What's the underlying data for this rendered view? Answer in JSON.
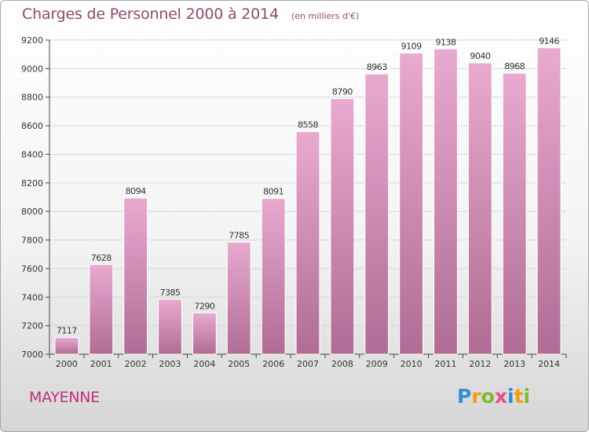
{
  "header": {
    "title": "Charges de Personnel 2000 à 2014",
    "subtitle": "(en milliers d'€)"
  },
  "footer": {
    "location": "MAYENNE",
    "logo_letters": [
      "P",
      "r",
      "o",
      "x",
      "i",
      "t",
      "i"
    ]
  },
  "colors": {
    "title": "#8c4a70",
    "location": "#c0307a",
    "bar_top": "#e9aad0",
    "bar_bottom": "#b06c94",
    "grid": "#d8d8d8"
  },
  "chart_data": {
    "type": "bar",
    "title": "Charges de Personnel 2000 à 2014",
    "subtitle": "(en milliers d'€)",
    "xlabel": "",
    "ylabel": "",
    "categories": [
      "2000",
      "2001",
      "2002",
      "2003",
      "2004",
      "2005",
      "2006",
      "2007",
      "2008",
      "2009",
      "2010",
      "2011",
      "2012",
      "2013",
      "2014"
    ],
    "values": [
      7117,
      7628,
      8094,
      7385,
      7290,
      7785,
      8091,
      8558,
      8790,
      8963,
      9109,
      9138,
      9040,
      8968,
      9146
    ],
    "data_labels": [
      "7117",
      "7628",
      "8094",
      "7385",
      "7290",
      "7785",
      "8091",
      "8558",
      "8790",
      "8963",
      "9109",
      "9138",
      "9040",
      "8968",
      "9146"
    ],
    "ylim": [
      7000,
      9200
    ],
    "yticks": [
      7000,
      7200,
      7400,
      7600,
      7800,
      8000,
      8200,
      8400,
      8600,
      8800,
      9000,
      9200
    ],
    "ytick_labels": [
      "7000",
      "7200",
      "7400",
      "7600",
      "7800",
      "8000",
      "8200",
      "8400",
      "8600",
      "8800",
      "9000",
      "9200"
    ],
    "grid": true,
    "legend": "none"
  }
}
